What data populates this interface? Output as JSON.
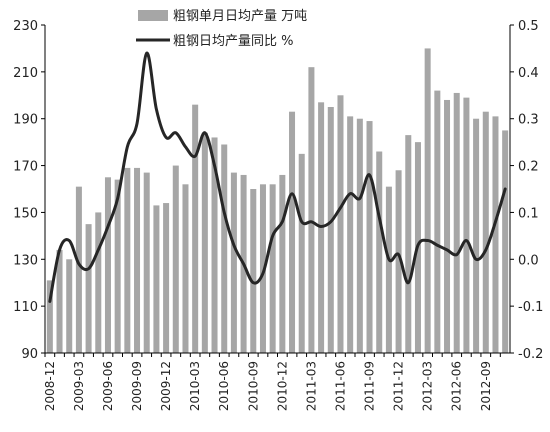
{
  "chart_data": {
    "type": "bar+line",
    "legend_position": "top",
    "grid": false,
    "categories": [
      "2008-12",
      "2009-01",
      "2009-02",
      "2009-03",
      "2009-04",
      "2009-05",
      "2009-06",
      "2009-07",
      "2009-08",
      "2009-09",
      "2009-10",
      "2009-11",
      "2009-12",
      "2010-01",
      "2010-02",
      "2010-03",
      "2010-04",
      "2010-05",
      "2010-06",
      "2010-07",
      "2010-08",
      "2010-09",
      "2010-10",
      "2010-11",
      "2010-12",
      "2011-01",
      "2011-02",
      "2011-03",
      "2011-04",
      "2011-05",
      "2011-06",
      "2011-07",
      "2011-08",
      "2011-09",
      "2011-10",
      "2011-11",
      "2011-12",
      "2012-01",
      "2012-02",
      "2012-03",
      "2012-04",
      "2012-05",
      "2012-06",
      "2012-07",
      "2012-08",
      "2012-09",
      "2012-10",
      "2012-11"
    ],
    "x_tick_labels": [
      "2008-12",
      "2009-03",
      "2009-06",
      "2009-09",
      "2009-12",
      "2010-03",
      "2010-06",
      "2010-09",
      "2010-12",
      "2011-03",
      "2011-06",
      "2011-09",
      "2011-12",
      "2012-03",
      "2012-06",
      "2012-09"
    ],
    "left_axis": {
      "ylim": [
        90,
        230
      ],
      "ticks": [
        "90",
        "110",
        "130",
        "150",
        "170",
        "190",
        "210",
        "230"
      ]
    },
    "right_axis": {
      "ylim": [
        -0.2,
        0.5
      ],
      "ticks": [
        "-0.2",
        "-0.1",
        "0.0",
        "0.1",
        "0.2",
        "0.3",
        "0.4",
        "0.5"
      ]
    },
    "series": [
      {
        "name": "粗钢单月日均产量 万吨",
        "kind": "bar",
        "axis": "left",
        "color": "#a6a6a6",
        "values": [
          121,
          134,
          130,
          161,
          145,
          150,
          165,
          164,
          169,
          169,
          167,
          153,
          154,
          170,
          162,
          196,
          184,
          182,
          179,
          167,
          166,
          160,
          162,
          162,
          166,
          193,
          175,
          212,
          197,
          195,
          200,
          191,
          190,
          189,
          176,
          161,
          168,
          183,
          180,
          220,
          202,
          198,
          201,
          199,
          190,
          193,
          191,
          185
        ]
      },
      {
        "name": "粗钢日均产量同比 %",
        "kind": "line",
        "axis": "right",
        "color": "#262626",
        "values": [
          -0.09,
          0.02,
          0.04,
          -0.01,
          -0.02,
          0.02,
          0.07,
          0.13,
          0.24,
          0.29,
          0.44,
          0.32,
          0.26,
          0.27,
          0.24,
          0.22,
          0.27,
          0.2,
          0.1,
          0.03,
          -0.01,
          -0.05,
          -0.03,
          0.05,
          0.08,
          0.14,
          0.08,
          0.08,
          0.07,
          0.08,
          0.11,
          0.14,
          0.13,
          0.18,
          0.09,
          0.0,
          0.01,
          -0.05,
          0.03,
          0.04,
          0.03,
          0.02,
          0.01,
          0.04,
          0.0,
          0.02,
          0.08,
          0.15
        ]
      }
    ]
  }
}
